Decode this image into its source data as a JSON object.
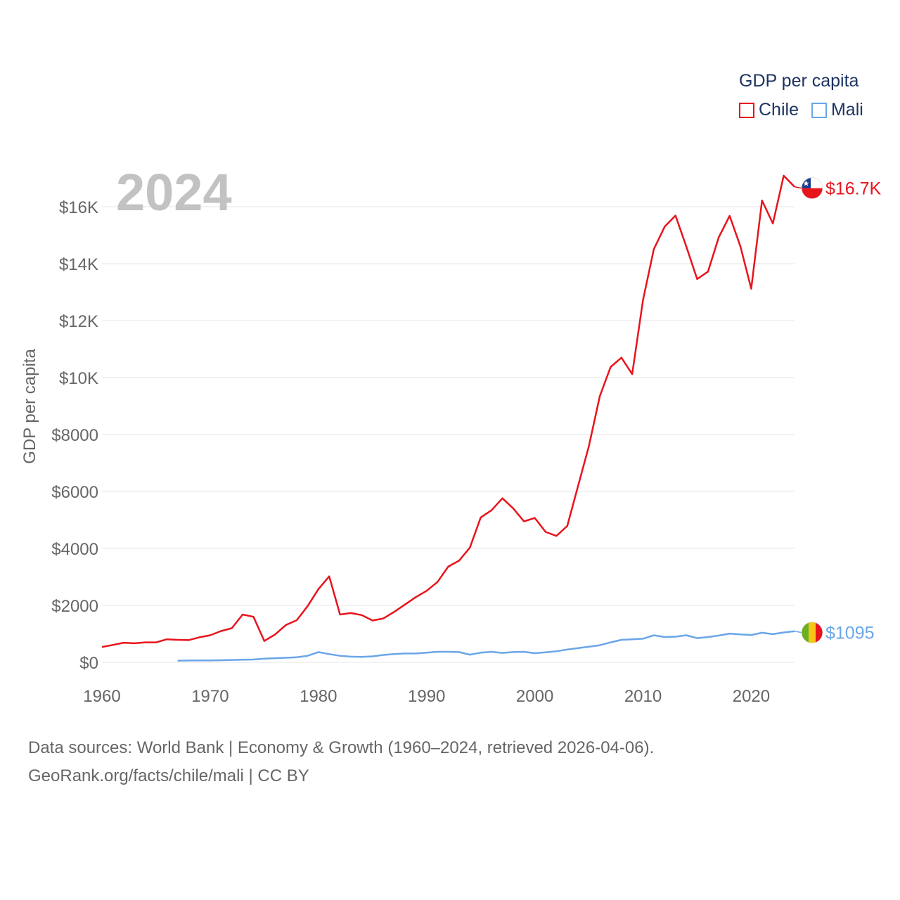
{
  "legend": {
    "title": "GDP per capita",
    "items": [
      {
        "label": "Chile",
        "color": "#e8141c"
      },
      {
        "label": "Mali",
        "color": "#6aa6e8"
      }
    ]
  },
  "chart_data": {
    "type": "line",
    "title": "",
    "year_watermark": "2024",
    "ylabel": "GDP per capita",
    "xlabel": "",
    "xlim": [
      1960,
      2024
    ],
    "ylim": [
      0,
      17000
    ],
    "x_ticks": [
      1960,
      1970,
      1980,
      1990,
      2000,
      2010,
      2020
    ],
    "x_tick_labels": [
      "1960",
      "1970",
      "1980",
      "1990",
      "2000",
      "2010",
      "2020"
    ],
    "y_ticks": [
      0,
      2000,
      4000,
      6000,
      8000,
      10000,
      12000,
      14000,
      16000
    ],
    "y_tick_labels": [
      "$0",
      "$2000",
      "$4000",
      "$6000",
      "$8000",
      "$10K",
      "$12K",
      "$14K",
      "$16K"
    ],
    "grid": true,
    "series": [
      {
        "name": "Chile",
        "color": "#e8141c",
        "end_label": "$16.7K",
        "flag": "chile-flag",
        "x": [
          1960,
          1961,
          1962,
          1963,
          1964,
          1965,
          1966,
          1967,
          1968,
          1969,
          1970,
          1971,
          1972,
          1973,
          1974,
          1975,
          1976,
          1977,
          1978,
          1979,
          1980,
          1981,
          1982,
          1983,
          1984,
          1985,
          1986,
          1987,
          1988,
          1989,
          1990,
          1991,
          1992,
          1993,
          1994,
          1995,
          1996,
          1997,
          1998,
          1999,
          2000,
          2001,
          2002,
          2003,
          2004,
          2005,
          2006,
          2007,
          2008,
          2009,
          2010,
          2011,
          2012,
          2013,
          2014,
          2015,
          2016,
          2017,
          2018,
          2019,
          2020,
          2021,
          2022,
          2023,
          2024
        ],
        "values": [
          540,
          610,
          690,
          670,
          700,
          700,
          810,
          790,
          780,
          880,
          950,
          1100,
          1200,
          1680,
          1600,
          750,
          980,
          1310,
          1480,
          1970,
          2570,
          3020,
          1680,
          1730,
          1660,
          1470,
          1540,
          1770,
          2030,
          2290,
          2510,
          2820,
          3360,
          3570,
          4030,
          5090,
          5340,
          5760,
          5410,
          4950,
          5070,
          4580,
          4440,
          4790,
          6200,
          7600,
          9340,
          10370,
          10700,
          10120,
          12720,
          14510,
          15300,
          15690,
          14600,
          13460,
          13720,
          14930,
          15680,
          14610,
          13120,
          16220,
          15410,
          17090,
          16700
        ]
      },
      {
        "name": "Mali",
        "color": "#6aa6e8",
        "end_label": "$1095",
        "flag": "mali-flag",
        "x": [
          1967,
          1968,
          1969,
          1970,
          1971,
          1972,
          1973,
          1974,
          1975,
          1976,
          1977,
          1978,
          1979,
          1980,
          1981,
          1982,
          1983,
          1984,
          1985,
          1986,
          1987,
          1988,
          1989,
          1990,
          1991,
          1992,
          1993,
          1994,
          1995,
          1996,
          1997,
          1998,
          1999,
          2000,
          2001,
          2002,
          2003,
          2004,
          2005,
          2006,
          2007,
          2008,
          2009,
          2010,
          2011,
          2012,
          2013,
          2014,
          2015,
          2016,
          2017,
          2018,
          2019,
          2020,
          2021,
          2022,
          2023,
          2024
        ],
        "values": [
          60,
          65,
          68,
          70,
          75,
          85,
          95,
          100,
          130,
          145,
          160,
          180,
          230,
          360,
          290,
          230,
          200,
          190,
          210,
          260,
          290,
          310,
          310,
          340,
          370,
          370,
          360,
          270,
          340,
          370,
          330,
          360,
          370,
          320,
          350,
          390,
          450,
          500,
          550,
          600,
          700,
          790,
          810,
          830,
          950,
          890,
          900,
          950,
          850,
          890,
          940,
          1010,
          980,
          960,
          1040,
          990,
          1050,
          1095
        ]
      }
    ]
  },
  "footer": {
    "line1": "Data sources: World Bank | Economy & Growth (1960–2024, retrieved 2026-04-06).",
    "line2": "GeoRank.org/facts/chile/mali | CC BY"
  }
}
